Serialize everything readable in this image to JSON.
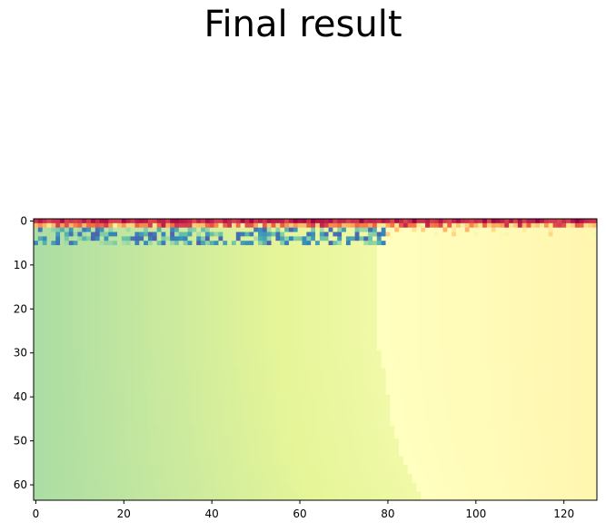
{
  "title": "Final result",
  "chart_data": {
    "type": "heatmap",
    "title": "Final result",
    "xlabel": "",
    "ylabel": "",
    "colormap": "Spectral",
    "n_cols": 128,
    "n_rows": 64,
    "xlim": [
      -0.5,
      127.5
    ],
    "ylim": [
      63.5,
      -0.5
    ],
    "x_ticks": [
      0,
      20,
      40,
      60,
      80,
      100,
      120
    ],
    "y_ticks": [
      0,
      10,
      20,
      30,
      40,
      50,
      60
    ],
    "top_rows_pattern": {
      "row_0": "dark red / red (high values)",
      "rows_1_2": "mixed red, orange, yellow",
      "rows_2_5": "patches of blue and teal on the left (cols 0-80)"
    },
    "boundary_col_by_row": [
      [
        5,
        78
      ],
      [
        28,
        78
      ],
      [
        35,
        80
      ],
      [
        45,
        81
      ],
      [
        55,
        84
      ],
      [
        63,
        88
      ]
    ],
    "left_region_colormap_value_range": [
      0.7,
      0.56
    ],
    "right_region_colormap_value_range": [
      0.5,
      0.47
    ]
  }
}
